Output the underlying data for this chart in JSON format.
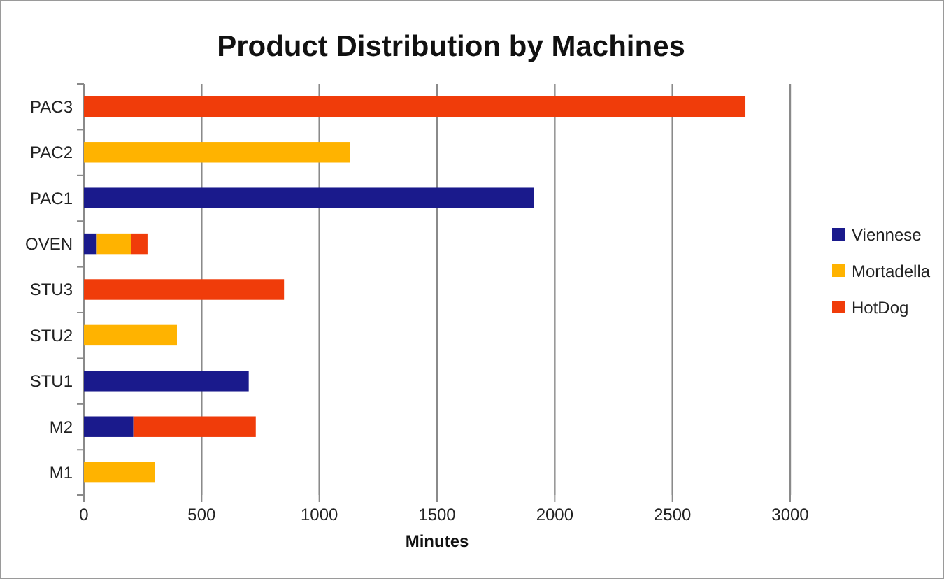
{
  "chart_data": {
    "type": "bar",
    "orientation": "horizontal",
    "stacked": true,
    "title": "Product Distribution by Machines",
    "xlabel": "Minutes",
    "categories": [
      "PAC3",
      "PAC2",
      "PAC1",
      "OVEN",
      "STU3",
      "STU2",
      "STU1",
      "M2",
      "M1"
    ],
    "series": [
      {
        "name": "Viennese",
        "color": "#1a1a8c",
        "values": [
          0,
          0,
          1910,
          55,
          0,
          0,
          700,
          210,
          0
        ]
      },
      {
        "name": "Mortadella",
        "color": "#ffb300",
        "values": [
          0,
          1130,
          0,
          145,
          0,
          395,
          0,
          0,
          300
        ]
      },
      {
        "name": "HotDog",
        "color": "#f03c0a",
        "values": [
          2810,
          0,
          0,
          70,
          850,
          0,
          0,
          520,
          0
        ]
      }
    ],
    "xlim": [
      0,
      3000
    ],
    "xticks": [
      0,
      500,
      1000,
      1500,
      2000,
      2500,
      3000
    ],
    "grid": "x",
    "legend": "right"
  }
}
